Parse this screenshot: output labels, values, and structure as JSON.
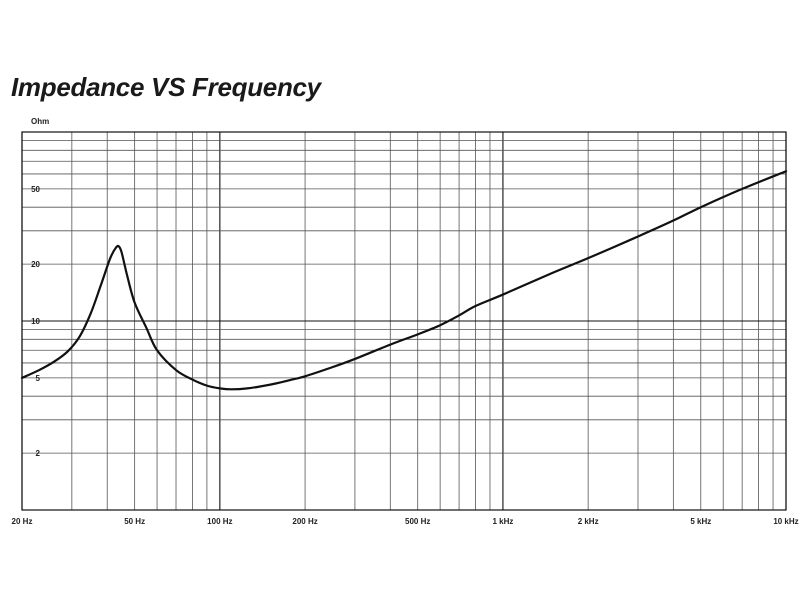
{
  "chart_data": {
    "type": "line",
    "title": "Impedance VS Frequency",
    "xlabel": "",
    "ylabel": "Ohm",
    "x_scale": "log",
    "y_scale": "log",
    "xlim": [
      20,
      10000
    ],
    "ylim": [
      1,
      100
    ],
    "grid": true,
    "x_ticks": [
      {
        "value": 20,
        "label": "20 Hz"
      },
      {
        "value": 50,
        "label": "50 Hz"
      },
      {
        "value": 100,
        "label": "100 Hz"
      },
      {
        "value": 200,
        "label": "200 Hz"
      },
      {
        "value": 500,
        "label": "500 Hz"
      },
      {
        "value": 1000,
        "label": "1 kHz"
      },
      {
        "value": 2000,
        "label": "2 kHz"
      },
      {
        "value": 5000,
        "label": "5 kHz"
      },
      {
        "value": 10000,
        "label": "10 kHz"
      }
    ],
    "y_ticks": [
      {
        "value": 2,
        "label": "2"
      },
      {
        "value": 5,
        "label": "5"
      },
      {
        "value": 10,
        "label": "10"
      },
      {
        "value": 20,
        "label": "20"
      },
      {
        "value": 50,
        "label": "50"
      }
    ],
    "series": [
      {
        "name": "",
        "color": "#111111",
        "x": [
          20,
          23,
          26,
          29,
          32,
          35,
          38,
          41,
          43,
          44,
          45,
          47,
          50,
          55,
          60,
          70,
          80,
          90,
          100,
          110,
          125,
          150,
          175,
          200,
          250,
          300,
          400,
          500,
          600,
          700,
          800,
          1000,
          1500,
          2000,
          3000,
          4000,
          5000,
          7000,
          10000
        ],
        "y": [
          5.0,
          5.5,
          6.1,
          6.9,
          8.3,
          11.0,
          15.5,
          21.5,
          24.5,
          24.8,
          23.0,
          17.5,
          12.5,
          9.2,
          7.0,
          5.5,
          4.9,
          4.55,
          4.4,
          4.35,
          4.4,
          4.6,
          4.85,
          5.1,
          5.7,
          6.3,
          7.5,
          8.5,
          9.5,
          10.7,
          12.0,
          13.8,
          18.0,
          21.5,
          28.0,
          34.0,
          40.0,
          50.0,
          62.0
        ]
      }
    ]
  }
}
